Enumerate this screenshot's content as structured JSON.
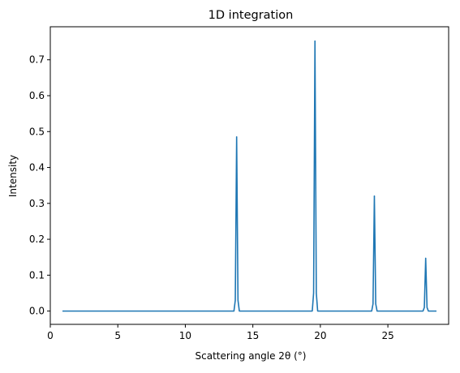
{
  "chart_data": {
    "type": "line",
    "title": "1D integration",
    "xlabel": "Scattering angle 2θ (°)",
    "ylabel": "Intensity",
    "xlim": [
      0.0,
      29.5
    ],
    "ylim": [
      -0.037,
      0.792
    ],
    "xticks": [
      0,
      5,
      10,
      15,
      20,
      25
    ],
    "xtick_labels": [
      "0",
      "5",
      "10",
      "15",
      "20",
      "25"
    ],
    "yticks": [
      0.0,
      0.1,
      0.2,
      0.3,
      0.4,
      0.5,
      0.6,
      0.7
    ],
    "ytick_labels": [
      "0.0",
      "0.1",
      "0.2",
      "0.3",
      "0.4",
      "0.5",
      "0.6",
      "0.7"
    ],
    "grid": false,
    "line_color": "#1f77b4",
    "x_range": [
      0.9,
      28.6
    ],
    "peaks": [
      {
        "x": 13.8,
        "y": 0.485
      },
      {
        "x": 19.6,
        "y": 0.752
      },
      {
        "x": 24.0,
        "y": 0.32
      },
      {
        "x": 27.8,
        "y": 0.147
      }
    ],
    "series": [
      {
        "x": [
          0.9,
          13.6,
          13.7,
          13.8,
          13.9,
          14.0,
          19.4,
          19.5,
          19.6,
          19.7,
          19.8,
          23.8,
          23.9,
          24.0,
          24.1,
          24.2,
          27.6,
          27.7,
          27.8,
          27.9,
          28.0,
          28.6
        ],
        "y": [
          0.0,
          0.0,
          0.03,
          0.485,
          0.03,
          0.0,
          0.0,
          0.05,
          0.752,
          0.05,
          0.0,
          0.0,
          0.02,
          0.32,
          0.02,
          0.0,
          0.0,
          0.01,
          0.147,
          0.01,
          0.0,
          0.0
        ]
      }
    ]
  }
}
